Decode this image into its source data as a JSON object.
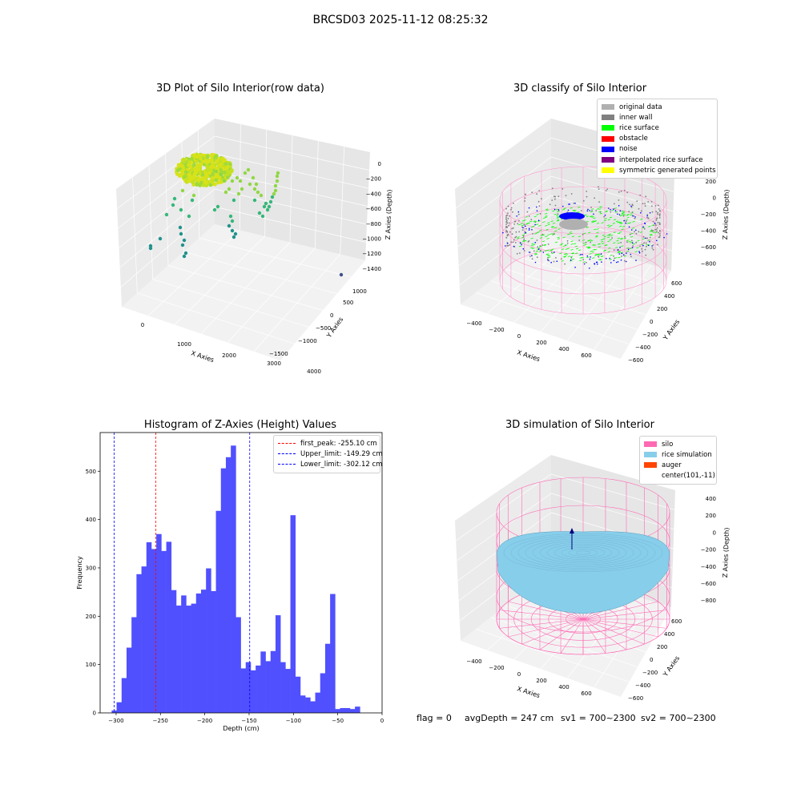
{
  "figure": {
    "suptitle": "BRCSD03 2025-11-12 08:25:32",
    "footer": {
      "flag": "flag = 0",
      "avg_depth": "avgDepth = 247 cm",
      "sv1": "sv1 = 700~2300",
      "sv2": "sv2 = 700~2300"
    }
  },
  "colors": {
    "histogram_bar": "#5050ff",
    "first_peak_line": "#ff0000",
    "limit_line": "#0000ff",
    "silo_pink": "#ff69b4",
    "rice_sim": "#87ceeb",
    "rice_surface": "#00ff00",
    "noise": "#0000ff",
    "inner_wall": "#808080"
  },
  "chart_data": [
    {
      "type": "scatter",
      "projection": "3d",
      "title": "3D Plot of Silo Interior(row data)",
      "xlabel": "X Axies",
      "ylabel": "Y Axies",
      "zlabel": "Z Axies (Depth)",
      "x_ticks": [
        "0",
        "1000",
        "2000",
        "3000",
        "4000"
      ],
      "y_ticks": [
        "−1500",
        "−1000",
        "−500",
        "0",
        "500",
        "1000"
      ],
      "z_ticks": [
        "0",
        "−200",
        "−400",
        "−600",
        "−800",
        "−1000",
        "−1200",
        "−1400"
      ],
      "grid": true
    },
    {
      "type": "scatter",
      "projection": "3d",
      "title": "3D classify of Silo Interior",
      "xlabel": "X Axies",
      "ylabel": "Y Axies",
      "zlabel": "Z Axies (Depth)",
      "x_ticks": [
        "−400",
        "−200",
        "0",
        "200",
        "400",
        "600"
      ],
      "y_ticks": [
        "−600",
        "−400",
        "−200",
        "0",
        "200",
        "400",
        "600"
      ],
      "z_ticks": [
        "200",
        "0",
        "−200",
        "−400",
        "−600",
        "−800"
      ],
      "legend": [
        {
          "name": "original data",
          "color": "#b0b0b0"
        },
        {
          "name": "inner wall",
          "color": "#808080"
        },
        {
          "name": "rice surface",
          "color": "#00ff00"
        },
        {
          "name": "obstacle",
          "color": "#ff0000"
        },
        {
          "name": "noise",
          "color": "#0000ff"
        },
        {
          "name": "interpolated rice surface",
          "color": "#800080"
        },
        {
          "name": "symmetric generated points",
          "color": "#ffff00"
        }
      ],
      "legend_position": "top-right",
      "grid": true
    },
    {
      "type": "bar",
      "title": "Histogram of Z-Axies (Height) Values",
      "xlabel": "Depth (cm)",
      "ylabel": "Frequency",
      "xlim": [
        -318,
        0
      ],
      "ylim": [
        0,
        580
      ],
      "x_ticks": [
        -300,
        -250,
        -200,
        -150,
        -100,
        -50,
        0
      ],
      "x_tick_labels": [
        "−300",
        "−250",
        "−200",
        "−150",
        "−100",
        "−50",
        "0"
      ],
      "y_ticks": [
        0,
        100,
        200,
        300,
        400,
        500
      ],
      "bin_start": -305,
      "bin_width": 5.6,
      "values": [
        5,
        22,
        72,
        135,
        198,
        287,
        303,
        353,
        339,
        370,
        335,
        354,
        254,
        222,
        243,
        222,
        226,
        247,
        255,
        299,
        252,
        418,
        506,
        529,
        553,
        198,
        92,
        105,
        88,
        98,
        127,
        107,
        128,
        202,
        105,
        91,
        409,
        75,
        36,
        32,
        24,
        42,
        82,
        143,
        246,
        8,
        10,
        10,
        8,
        13
      ],
      "vlines": [
        {
          "label": "first_peak: -255.10 cm",
          "x": -255.1,
          "color": "#ff0000"
        },
        {
          "label": "Upper_limit: -149.29 cm",
          "x": -149.29,
          "color": "#0000ff"
        },
        {
          "label": "Lower_limit: -302.12 cm",
          "x": -302.12,
          "color": "#0000ff"
        }
      ],
      "legend_position": "top-right"
    },
    {
      "type": "surface",
      "projection": "3d",
      "title": "3D simulation of Silo Interior",
      "xlabel": "X Axies",
      "ylabel": "Y Axies",
      "zlabel": "Z Axies (Depth)",
      "x_ticks": [
        "−400",
        "−200",
        "0",
        "200",
        "400",
        "600"
      ],
      "y_ticks": [
        "−600",
        "−400",
        "−200",
        "0",
        "200",
        "400",
        "600"
      ],
      "z_ticks": [
        "400",
        "200",
        "0",
        "−200",
        "−400",
        "−600",
        "−800"
      ],
      "legend": [
        {
          "name": "silo",
          "color": "#ff69b4"
        },
        {
          "name": "rice simulation",
          "color": "#87ceeb"
        },
        {
          "name": "auger",
          "color": "#ff4500"
        },
        {
          "name": "center(101,-11)",
          "color": ""
        }
      ],
      "legend_position": "top-right",
      "grid": true
    }
  ]
}
